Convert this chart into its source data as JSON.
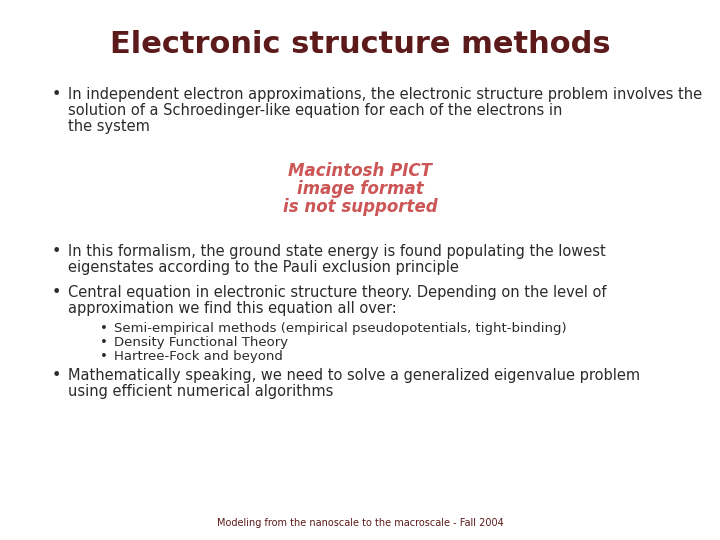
{
  "title": "Electronic structure methods",
  "title_color": "#5C1A1A",
  "title_fontsize": 22,
  "background_color": "#FFFFFF",
  "text_color": "#2B2B2B",
  "footer_text": "Modeling from the nanoscale to the macroscale - Fall 2004",
  "footer_color": "#5C1A1A",
  "footer_fontsize": 7,
  "pict_color": "#CC5555",
  "pict_lines": [
    "Macintosh PICT",
    "image format",
    "is not supported"
  ],
  "bullet1_lines": [
    "In independent electron approximations, the electronic structure problem involves the",
    "solution of a Schroedinger-like equation for each of the electrons in",
    "the system"
  ],
  "bullet2_lines": [
    "In this formalism, the ground state energy is found populating the lowest",
    "eigenstates according to the Pauli exclusion principle"
  ],
  "bullet3_lines": [
    "Central equation in electronic structure theory. Depending on the level of",
    "approximation we find this equation all over:"
  ],
  "sub_bullets": [
    "Semi-empirical methods (empirical pseudopotentials, tight-binding)",
    "Density Functional Theory",
    "Hartree-Fock and beyond"
  ],
  "bullet4_lines": [
    "Mathematically speaking, we need to solve a generalized eigenvalue problem",
    "using efficient numerical algorithms"
  ],
  "main_fontsize": 10.5,
  "sub_fontsize": 9.5,
  "pict_fontsize": 12
}
